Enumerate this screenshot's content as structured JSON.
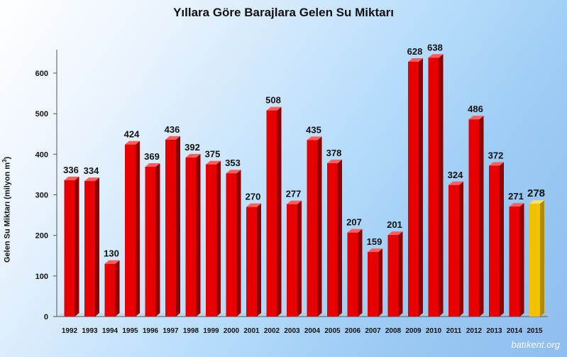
{
  "chart_data": {
    "type": "bar",
    "title": "Yıllara Göre Barajlara Gelen Su Miktarı",
    "ylabel": "Gelen Su Miktarı (milyon m",
    "ylabel_superscript": "3",
    "ylabel_close": ")",
    "xlabel": "",
    "ylim": [
      0,
      600
    ],
    "yticks": [
      0,
      100,
      200,
      300,
      400,
      500,
      600
    ],
    "grid": false,
    "legend": "none",
    "categories": [
      "1992",
      "1993",
      "1994",
      "1995",
      "1996",
      "1997",
      "1998",
      "1999",
      "2000",
      "2001",
      "2002",
      "2003",
      "2004",
      "2005",
      "2006",
      "2007",
      "2008",
      "2009",
      "2010",
      "2011",
      "2012",
      "2013",
      "2014",
      "2015"
    ],
    "values": [
      336,
      334,
      130,
      424,
      369,
      436,
      392,
      375,
      353,
      270,
      508,
      277,
      435,
      378,
      207,
      159,
      201,
      628,
      638,
      324,
      486,
      372,
      271,
      278
    ],
    "colors": {
      "default_bar": "#e60000",
      "highlight_bar": "#f2c200"
    },
    "highlight_category": "2015"
  },
  "watermark": "batıkent.org"
}
